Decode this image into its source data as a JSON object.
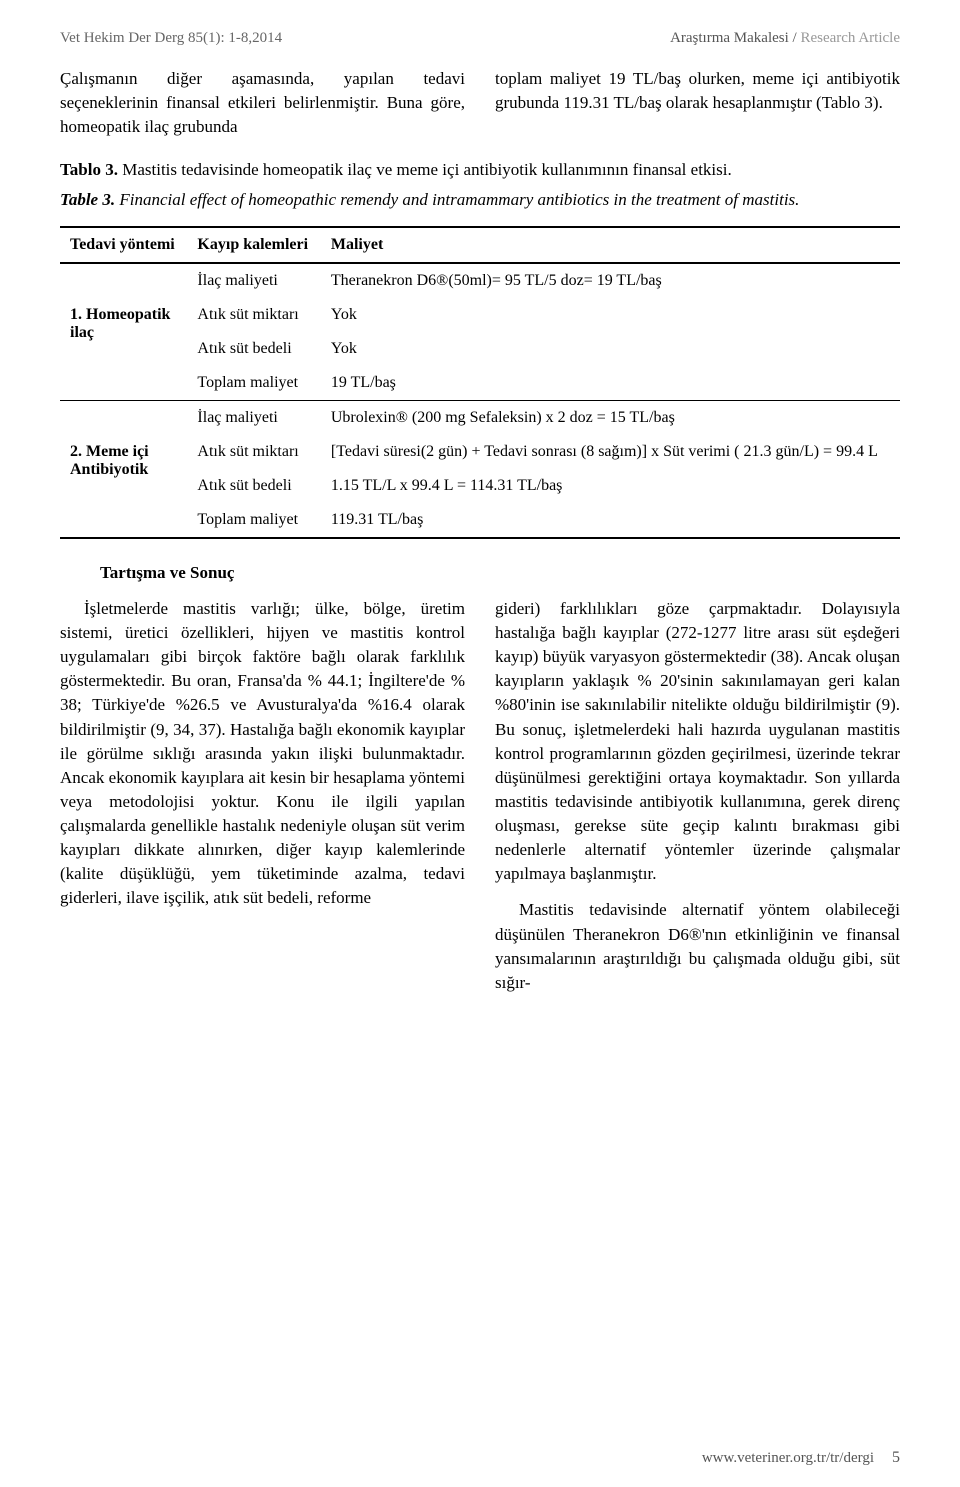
{
  "header": {
    "left": "Vet Hekim Der Derg 85(1): 1-8,2014",
    "right_bold": "Araştırma Makalesi / ",
    "right_light": "Research Article"
  },
  "intro": {
    "left": "Çalışmanın diğer aşamasında, yapılan tedavi seçeneklerinin finansal etkileri belirlenmiştir. Buna göre, homeopatik ilaç grubunda",
    "right": "toplam maliyet 19 TL/baş olurken, meme içi antibiyotik grubunda 119.31 TL/baş olarak hesaplanmıştır (Tablo 3)."
  },
  "captions": {
    "tr_bold": "Tablo 3.",
    "tr_rest": " Mastitis tedavisinde homeopatik ilaç ve meme içi antibiyotik kullanımının finansal etkisi.",
    "en_bold": "Table 3.",
    "en_rest": " Financial effect of homeopathic remendy and  intramammary antibiotics in the treatment of mastitis."
  },
  "table": {
    "columns": [
      "Tedavi yöntemi",
      "Kayıp kalemleri",
      "Maliyet"
    ],
    "groups": [
      {
        "label_lines": [
          "1. Homeopatik",
          "ilaç"
        ],
        "rows": [
          [
            "İlaç maliyeti",
            "Theranekron D6®(50ml)= 95 TL/5 doz= 19 TL/baş"
          ],
          [
            "Atık süt miktarı",
            "Yok"
          ],
          [
            "Atık süt bedeli",
            "Yok"
          ],
          [
            "Toplam maliyet",
            "19 TL/baş"
          ]
        ]
      },
      {
        "label_lines": [
          "2. Meme içi",
          "Antibiyotik"
        ],
        "rows": [
          [
            "İlaç maliyeti",
            "Ubrolexin® (200 mg Sefaleksin) x 2 doz = 15 TL/baş"
          ],
          [
            "Atık süt miktarı",
            "[Tedavi süresi(2 gün) + Tedavi sonrası (8 sağım)] x Süt verimi ( 21.3 gün/L) = 99.4 L"
          ],
          [
            "Atık süt bedeli",
            "1.15 TL/L x 99.4 L = 114.31 TL/baş"
          ],
          [
            "Toplam maliyet",
            "119.31 TL/baş"
          ]
        ]
      }
    ]
  },
  "section_heading": "Tartışma ve Sonuç",
  "body": {
    "left": "İşletmelerde mastitis varlığı; ülke, bölge, üretim sistemi, üretici özellikleri, hijyen ve mastitis kontrol uygulamaları gibi birçok faktöre bağlı olarak farklılık göstermektedir. Bu oran, Fransa'da % 44.1; İngiltere'de % 38; Türkiye'de %26.5 ve Avusturalya'da %16.4 olarak bildirilmiştir (9, 34, 37). Hastalığa bağlı ekonomik kayıplar ile görülme sıklığı arasında yakın ilişki bulunmaktadır. Ancak ekonomik kayıplara ait kesin bir hesaplama yöntemi veya metodolojisi yoktur. Konu ile ilgili yapılan çalışmalarda genellikle hastalık nedeniyle oluşan süt verim kayıpları dikkate alınırken, diğer kayıp kalemlerinde (kalite düşüklüğü, yem tüketiminde azalma, tedavi giderleri, ilave işçilik, atık süt bedeli, reforme",
    "right_p1": "gideri) farklılıkları göze çarpmaktadır. Dolayısıyla hastalığa bağlı kayıplar (272-1277 litre arası süt eşdeğeri kayıp) büyük varyasyon göstermektedir (38). Ancak oluşan kayıpların yaklaşık % 20'sinin sakınılamayan geri kalan %80'inin ise sakınılabilir nitelikte olduğu bildirilmiştir (9). Bu sonuç, işletmelerdeki hali hazırda uygulanan mastitis kontrol programlarının gözden geçirilmesi, üzerinde tekrar düşünülmesi gerektiğini ortaya koymaktadır. Son yıllarda mastitis tedavisinde antibiyotik kullanımına, gerek direnç oluşması, gerekse süte geçip kalıntı bırakması gibi nedenlerle alternatif yöntemler üzerinde çalışmalar yapılmaya başlanmıştır.",
    "right_p2": "Mastitis tedavisinde alternatif yöntem olabileceği düşünülen Theranekron D6®'nın etkinliğinin ve finansal yansımalarının araştırıldığı bu çalışmada olduğu gibi, süt sığır-"
  },
  "footer": {
    "url": "www.veteriner.org.tr/tr/dergi",
    "page": "5"
  }
}
